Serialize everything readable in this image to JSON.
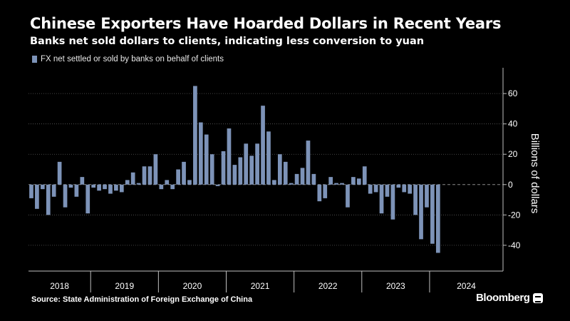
{
  "header": {
    "title": "Chinese Exporters Have Hoarded Dollars in Recent Years",
    "subtitle": "Banks net sold dollars to clients, indicating less conversion to yuan"
  },
  "footer": {
    "source": "Source:  State Administration of Foreign Exchange of China",
    "brand": "Bloomberg"
  },
  "colors": {
    "bar": "#7d93b8",
    "grid": "#5a5a5a",
    "axis": "#bfbfbf",
    "background": "#000000"
  },
  "chart_data": {
    "type": "bar",
    "title": "Chinese Exporters Have Hoarded Dollars in Recent Years",
    "subtitle": "Banks net sold dollars to clients, indicating less conversion to yuan",
    "xlabel": "",
    "ylabel": "Billions of dollars",
    "ylim": [
      -57,
      77
    ],
    "yticks": [
      -40,
      -20,
      0,
      20,
      40,
      60
    ],
    "grid": true,
    "legend_position": "top-left",
    "y_axis_side": "right",
    "year_labels": [
      "2018",
      "2019",
      "2020",
      "2021",
      "2022",
      "2023",
      "2024"
    ],
    "series": [
      {
        "name": "FX net settled or sold by banks on behalf of clients",
        "start": "2018-01",
        "values": [
          -9,
          -16,
          -3,
          -20,
          -8,
          15,
          -15,
          -2,
          -8,
          5,
          -19,
          -2,
          -4,
          -3,
          -6,
          -4,
          -5,
          3,
          8,
          1,
          12,
          12,
          20,
          -3,
          3,
          -3,
          10,
          15,
          3,
          65,
          41,
          33,
          20,
          -1,
          22,
          37,
          13,
          18,
          27,
          19,
          27,
          52,
          35,
          3,
          20,
          15,
          1,
          7,
          11,
          29,
          7,
          -11,
          -9,
          5,
          1,
          1,
          -15,
          5,
          4,
          12,
          -6,
          -5,
          -19,
          -8,
          -23,
          -2,
          -5,
          -6,
          -20,
          -36,
          -15,
          -39,
          -45
        ]
      }
    ]
  }
}
